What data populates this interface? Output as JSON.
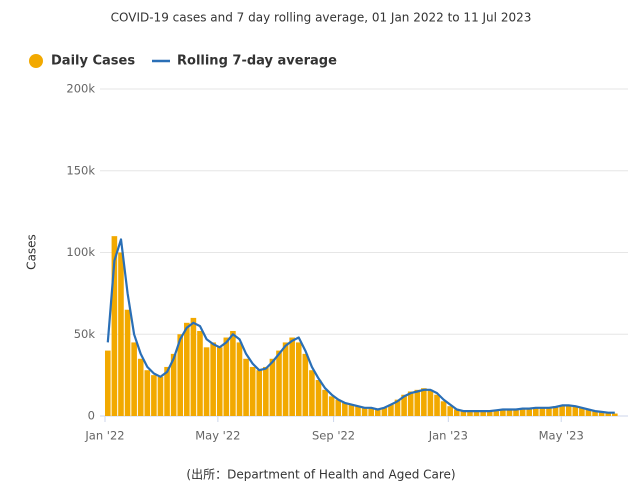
{
  "chart_data": {
    "type": "bar",
    "title": "COVID-19 cases and 7 day rolling average, 01 Jan 2022 to 11 Jul 2023",
    "y_label": "Cases",
    "source": "(出所：Department of Health and Aged Care)",
    "x": [
      "2022-01-01",
      "2022-01-08",
      "2022-01-15",
      "2022-01-22",
      "2022-01-29",
      "2022-02-05",
      "2022-02-12",
      "2022-02-19",
      "2022-02-26",
      "2022-03-05",
      "2022-03-12",
      "2022-03-19",
      "2022-03-26",
      "2022-04-02",
      "2022-04-09",
      "2022-04-16",
      "2022-04-23",
      "2022-04-30",
      "2022-05-07",
      "2022-05-14",
      "2022-05-21",
      "2022-05-28",
      "2022-06-04",
      "2022-06-11",
      "2022-06-18",
      "2022-06-25",
      "2022-07-02",
      "2022-07-09",
      "2022-07-16",
      "2022-07-23",
      "2022-07-30",
      "2022-08-06",
      "2022-08-13",
      "2022-08-20",
      "2022-08-27",
      "2022-09-03",
      "2022-09-10",
      "2022-09-17",
      "2022-09-24",
      "2022-10-01",
      "2022-10-08",
      "2022-10-15",
      "2022-10-22",
      "2022-10-29",
      "2022-11-05",
      "2022-11-12",
      "2022-11-19",
      "2022-11-26",
      "2022-12-03",
      "2022-12-10",
      "2022-12-17",
      "2022-12-24",
      "2022-12-31",
      "2023-01-07",
      "2023-01-14",
      "2023-01-21",
      "2023-01-28",
      "2023-02-04",
      "2023-02-11",
      "2023-02-18",
      "2023-02-25",
      "2023-03-04",
      "2023-03-11",
      "2023-03-18",
      "2023-03-25",
      "2023-04-01",
      "2023-04-08",
      "2023-04-15",
      "2023-04-22",
      "2023-04-29",
      "2023-05-06",
      "2023-05-13",
      "2023-05-20",
      "2023-05-27",
      "2023-06-03",
      "2023-06-10",
      "2023-06-17",
      "2023-06-24"
    ],
    "series": [
      {
        "name": "Daily Cases",
        "type": "bar",
        "color": "#f2a900",
        "values": [
          40000,
          110000,
          100000,
          65000,
          45000,
          35000,
          28000,
          25000,
          24000,
          30000,
          38000,
          50000,
          57000,
          60000,
          52000,
          42000,
          45000,
          42000,
          48000,
          52000,
          45000,
          35000,
          30000,
          28000,
          30000,
          35000,
          40000,
          45000,
          48000,
          45000,
          38000,
          28000,
          22000,
          16000,
          12000,
          10000,
          8000,
          7000,
          6000,
          5000,
          5000,
          4000,
          5000,
          7000,
          10000,
          13000,
          15000,
          16000,
          17000,
          16000,
          13000,
          9000,
          6000,
          4000,
          3000,
          3000,
          3000,
          3000,
          3000,
          3500,
          4000,
          4000,
          4000,
          4500,
          5000,
          5000,
          5000,
          5000,
          6000,
          6500,
          6500,
          6000,
          5000,
          4000,
          3000,
          2500,
          2000,
          1500
        ]
      },
      {
        "name": "Rolling 7-day average",
        "type": "line",
        "color": "#2a6fb6",
        "values": [
          45000,
          95000,
          108000,
          75000,
          50000,
          38000,
          30000,
          26000,
          24000,
          27000,
          35000,
          47000,
          54000,
          57000,
          55000,
          47000,
          44000,
          42000,
          45000,
          50000,
          47000,
          38000,
          32000,
          28000,
          29000,
          33000,
          38000,
          43000,
          46000,
          48000,
          40000,
          30000,
          23000,
          17000,
          13000,
          10000,
          8000,
          7000,
          6000,
          5000,
          5000,
          4000,
          5000,
          7000,
          9000,
          12000,
          14000,
          15000,
          16000,
          16000,
          14000,
          10000,
          7000,
          4000,
          3000,
          3000,
          3000,
          3000,
          3000,
          3500,
          4000,
          4000,
          4000,
          4500,
          4500,
          5000,
          5000,
          5000,
          5500,
          6500,
          6500,
          6000,
          5000,
          4000,
          3000,
          2500,
          2000,
          2000
        ]
      }
    ],
    "xlim": [
      "2022-01-01",
      "2023-07-11"
    ],
    "xticks": [
      {
        "value": "2022-01-01",
        "label": "Jan '22"
      },
      {
        "value": "2022-05-01",
        "label": "May '22"
      },
      {
        "value": "2022-09-01",
        "label": "Sep '22"
      },
      {
        "value": "2023-01-01",
        "label": "Jan '23"
      },
      {
        "value": "2023-05-01",
        "label": "May '23"
      }
    ],
    "ylim": [
      0,
      200000
    ],
    "yticks": [
      0,
      {
        "value": 50000,
        "label": "50k"
      },
      {
        "value": 100000,
        "label": "100k"
      },
      {
        "value": 150000,
        "label": "150k"
      },
      {
        "value": 200000,
        "label": "200k"
      }
    ],
    "grid": true
  }
}
